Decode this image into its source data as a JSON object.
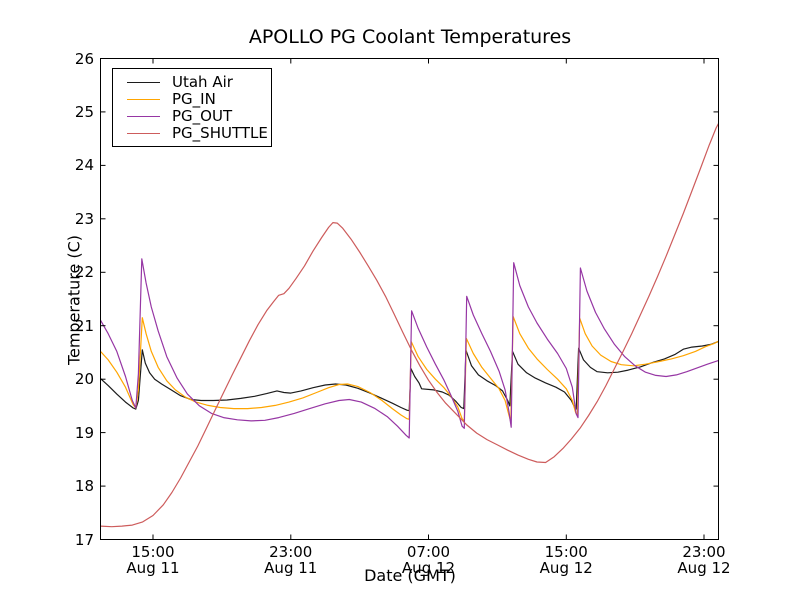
{
  "chart_data": {
    "type": "line",
    "title": "APOLLO PG Coolant Temperatures",
    "xlabel": "Date (GMT)",
    "ylabel": "Temperature (C)",
    "grid": false,
    "legend_position": "upper-left",
    "x_axis": {
      "unit": "hours since Aug 11 15:00 GMT",
      "range": [
        -3.08,
        32.85
      ],
      "ticks": [
        {
          "t": 0,
          "time": "15:00",
          "date": "Aug 11"
        },
        {
          "t": 8,
          "time": "23:00",
          "date": "Aug 11"
        },
        {
          "t": 16,
          "time": "07:00",
          "date": "Aug 12"
        },
        {
          "t": 24,
          "time": "15:00",
          "date": "Aug 12"
        },
        {
          "t": 32,
          "time": "23:00",
          "date": "Aug 12"
        }
      ]
    },
    "y_axis": {
      "range": [
        17,
        26
      ],
      "ticks": [
        17,
        18,
        19,
        20,
        21,
        22,
        23,
        24,
        25,
        26
      ]
    },
    "series": [
      {
        "name": "Utah Air",
        "color": "#1c1c1c",
        "points": [
          [
            -3.08,
            20.02
          ],
          [
            -2.6,
            19.88
          ],
          [
            -2.1,
            19.72
          ],
          [
            -1.6,
            19.57
          ],
          [
            -1.15,
            19.46
          ],
          [
            -1.0,
            19.44
          ],
          [
            -0.85,
            19.6
          ],
          [
            -0.62,
            20.55
          ],
          [
            -0.45,
            20.3
          ],
          [
            -0.2,
            20.12
          ],
          [
            0.1,
            20.0
          ],
          [
            0.5,
            19.91
          ],
          [
            1.0,
            19.81
          ],
          [
            1.6,
            19.69
          ],
          [
            2.2,
            19.62
          ],
          [
            2.8,
            19.6
          ],
          [
            3.5,
            19.6
          ],
          [
            4.3,
            19.61
          ],
          [
            5.1,
            19.64
          ],
          [
            5.9,
            19.68
          ],
          [
            6.6,
            19.73
          ],
          [
            7.2,
            19.78
          ],
          [
            7.6,
            19.75
          ],
          [
            8.0,
            19.74
          ],
          [
            8.6,
            19.78
          ],
          [
            9.3,
            19.84
          ],
          [
            10.0,
            19.89
          ],
          [
            10.6,
            19.91
          ],
          [
            11.2,
            19.89
          ],
          [
            11.9,
            19.83
          ],
          [
            12.6,
            19.74
          ],
          [
            13.3,
            19.64
          ],
          [
            13.9,
            19.55
          ],
          [
            14.4,
            19.47
          ],
          [
            14.75,
            19.42
          ],
          [
            14.88,
            19.41
          ],
          [
            14.98,
            20.2
          ],
          [
            15.2,
            20.05
          ],
          [
            15.45,
            19.93
          ],
          [
            15.6,
            19.82
          ],
          [
            16.3,
            19.8
          ],
          [
            16.8,
            19.76
          ],
          [
            17.2,
            19.7
          ],
          [
            17.6,
            19.58
          ],
          [
            17.9,
            19.47
          ],
          [
            18.05,
            19.45
          ],
          [
            18.18,
            20.54
          ],
          [
            18.5,
            20.25
          ],
          [
            18.9,
            20.08
          ],
          [
            19.4,
            19.97
          ],
          [
            19.9,
            19.88
          ],
          [
            20.3,
            19.78
          ],
          [
            20.6,
            19.6
          ],
          [
            20.72,
            19.5
          ],
          [
            20.88,
            20.52
          ],
          [
            21.2,
            20.28
          ],
          [
            21.7,
            20.12
          ],
          [
            22.2,
            20.02
          ],
          [
            22.8,
            19.93
          ],
          [
            23.4,
            19.85
          ],
          [
            23.9,
            19.76
          ],
          [
            24.3,
            19.6
          ],
          [
            24.5,
            19.46
          ],
          [
            24.58,
            19.44
          ],
          [
            24.72,
            20.58
          ],
          [
            25.0,
            20.36
          ],
          [
            25.4,
            20.22
          ],
          [
            25.8,
            20.14
          ],
          [
            26.4,
            20.12
          ],
          [
            27.0,
            20.13
          ],
          [
            27.6,
            20.17
          ],
          [
            28.3,
            20.23
          ],
          [
            29.0,
            20.31
          ],
          [
            29.7,
            20.38
          ],
          [
            30.3,
            20.46
          ],
          [
            30.8,
            20.56
          ],
          [
            31.3,
            20.6
          ],
          [
            31.9,
            20.62
          ],
          [
            32.4,
            20.65
          ],
          [
            32.95,
            20.72
          ]
        ]
      },
      {
        "name": "PG_IN",
        "color": "#ffa500",
        "points": [
          [
            -3.08,
            20.53
          ],
          [
            -2.6,
            20.36
          ],
          [
            -2.1,
            20.13
          ],
          [
            -1.6,
            19.85
          ],
          [
            -1.15,
            19.52
          ],
          [
            -1.0,
            19.46
          ],
          [
            -0.85,
            19.8
          ],
          [
            -0.62,
            21.15
          ],
          [
            -0.4,
            20.85
          ],
          [
            -0.1,
            20.52
          ],
          [
            0.3,
            20.22
          ],
          [
            0.8,
            19.97
          ],
          [
            1.3,
            19.8
          ],
          [
            1.9,
            19.66
          ],
          [
            2.5,
            19.57
          ],
          [
            3.2,
            19.51
          ],
          [
            3.9,
            19.47
          ],
          [
            4.7,
            19.45
          ],
          [
            5.5,
            19.45
          ],
          [
            6.3,
            19.47
          ],
          [
            7.1,
            19.51
          ],
          [
            7.9,
            19.57
          ],
          [
            8.7,
            19.65
          ],
          [
            9.5,
            19.75
          ],
          [
            10.2,
            19.84
          ],
          [
            10.8,
            19.9
          ],
          [
            11.3,
            19.91
          ],
          [
            11.9,
            19.86
          ],
          [
            12.6,
            19.75
          ],
          [
            13.3,
            19.6
          ],
          [
            13.9,
            19.45
          ],
          [
            14.4,
            19.33
          ],
          [
            14.75,
            19.26
          ],
          [
            14.88,
            19.25
          ],
          [
            15.0,
            20.7
          ],
          [
            15.4,
            20.42
          ],
          [
            15.9,
            20.18
          ],
          [
            16.4,
            20.0
          ],
          [
            16.9,
            19.84
          ],
          [
            17.3,
            19.68
          ],
          [
            17.7,
            19.48
          ],
          [
            17.95,
            19.26
          ],
          [
            18.08,
            19.22
          ],
          [
            18.2,
            20.76
          ],
          [
            18.6,
            20.48
          ],
          [
            19.1,
            20.22
          ],
          [
            19.6,
            20.02
          ],
          [
            20.1,
            19.82
          ],
          [
            20.45,
            19.6
          ],
          [
            20.65,
            19.35
          ],
          [
            20.78,
            19.2
          ],
          [
            20.92,
            21.17
          ],
          [
            21.3,
            20.85
          ],
          [
            21.8,
            20.58
          ],
          [
            22.3,
            20.38
          ],
          [
            22.9,
            20.18
          ],
          [
            23.5,
            20.0
          ],
          [
            24.0,
            19.82
          ],
          [
            24.35,
            19.6
          ],
          [
            24.55,
            19.37
          ],
          [
            24.65,
            19.33
          ],
          [
            24.78,
            21.14
          ],
          [
            25.1,
            20.85
          ],
          [
            25.5,
            20.62
          ],
          [
            26.0,
            20.45
          ],
          [
            26.6,
            20.33
          ],
          [
            27.2,
            20.27
          ],
          [
            27.9,
            20.25
          ],
          [
            28.6,
            20.28
          ],
          [
            29.4,
            20.33
          ],
          [
            30.1,
            20.38
          ],
          [
            30.8,
            20.44
          ],
          [
            31.5,
            20.52
          ],
          [
            32.1,
            20.61
          ],
          [
            32.6,
            20.67
          ],
          [
            32.95,
            20.73
          ]
        ]
      },
      {
        "name": "PG_OUT",
        "color": "#9636a4",
        "points": [
          [
            -3.08,
            21.12
          ],
          [
            -2.6,
            20.85
          ],
          [
            -2.1,
            20.52
          ],
          [
            -1.6,
            20.05
          ],
          [
            -1.2,
            19.6
          ],
          [
            -1.0,
            19.46
          ],
          [
            -0.85,
            20.1
          ],
          [
            -0.65,
            22.25
          ],
          [
            -0.4,
            21.8
          ],
          [
            -0.1,
            21.35
          ],
          [
            0.3,
            20.9
          ],
          [
            0.8,
            20.42
          ],
          [
            1.4,
            20.02
          ],
          [
            2.0,
            19.72
          ],
          [
            2.7,
            19.5
          ],
          [
            3.4,
            19.36
          ],
          [
            4.1,
            19.28
          ],
          [
            4.9,
            19.24
          ],
          [
            5.7,
            19.22
          ],
          [
            6.5,
            19.23
          ],
          [
            7.3,
            19.28
          ],
          [
            8.2,
            19.36
          ],
          [
            9.1,
            19.45
          ],
          [
            10.0,
            19.54
          ],
          [
            10.8,
            19.6
          ],
          [
            11.4,
            19.62
          ],
          [
            12.1,
            19.57
          ],
          [
            12.9,
            19.45
          ],
          [
            13.6,
            19.3
          ],
          [
            14.2,
            19.12
          ],
          [
            14.7,
            18.95
          ],
          [
            14.88,
            18.9
          ],
          [
            15.02,
            21.28
          ],
          [
            15.4,
            20.95
          ],
          [
            15.9,
            20.6
          ],
          [
            16.4,
            20.28
          ],
          [
            16.9,
            19.98
          ],
          [
            17.3,
            19.7
          ],
          [
            17.7,
            19.4
          ],
          [
            17.95,
            19.12
          ],
          [
            18.08,
            19.08
          ],
          [
            18.22,
            21.55
          ],
          [
            18.6,
            21.2
          ],
          [
            19.1,
            20.85
          ],
          [
            19.6,
            20.52
          ],
          [
            20.1,
            20.15
          ],
          [
            20.45,
            19.8
          ],
          [
            20.67,
            19.4
          ],
          [
            20.8,
            19.1
          ],
          [
            20.95,
            22.18
          ],
          [
            21.3,
            21.75
          ],
          [
            21.8,
            21.35
          ],
          [
            22.3,
            21.05
          ],
          [
            22.9,
            20.75
          ],
          [
            23.5,
            20.48
          ],
          [
            24.0,
            20.2
          ],
          [
            24.35,
            19.85
          ],
          [
            24.58,
            19.35
          ],
          [
            24.68,
            19.28
          ],
          [
            24.82,
            22.08
          ],
          [
            25.2,
            21.65
          ],
          [
            25.7,
            21.25
          ],
          [
            26.2,
            20.95
          ],
          [
            26.8,
            20.65
          ],
          [
            27.4,
            20.42
          ],
          [
            28.0,
            20.25
          ],
          [
            28.6,
            20.13
          ],
          [
            29.2,
            20.07
          ],
          [
            29.8,
            20.05
          ],
          [
            30.4,
            20.08
          ],
          [
            31.0,
            20.14
          ],
          [
            31.6,
            20.21
          ],
          [
            32.2,
            20.28
          ],
          [
            32.95,
            20.36
          ]
        ]
      },
      {
        "name": "PG_SHUTTLE",
        "color": "#cd5c5c",
        "points": [
          [
            -3.08,
            17.25
          ],
          [
            -2.4,
            17.24
          ],
          [
            -1.8,
            17.25
          ],
          [
            -1.2,
            17.27
          ],
          [
            -0.6,
            17.33
          ],
          [
            0.0,
            17.45
          ],
          [
            0.6,
            17.65
          ],
          [
            1.1,
            17.88
          ],
          [
            1.6,
            18.15
          ],
          [
            2.1,
            18.45
          ],
          [
            2.6,
            18.75
          ],
          [
            3.1,
            19.08
          ],
          [
            3.6,
            19.42
          ],
          [
            4.1,
            19.75
          ],
          [
            4.6,
            20.08
          ],
          [
            5.1,
            20.4
          ],
          [
            5.6,
            20.72
          ],
          [
            6.1,
            21.02
          ],
          [
            6.6,
            21.28
          ],
          [
            7.0,
            21.45
          ],
          [
            7.3,
            21.57
          ],
          [
            7.6,
            21.6
          ],
          [
            7.9,
            21.7
          ],
          [
            8.3,
            21.88
          ],
          [
            8.8,
            22.12
          ],
          [
            9.3,
            22.4
          ],
          [
            9.8,
            22.65
          ],
          [
            10.2,
            22.84
          ],
          [
            10.45,
            22.93
          ],
          [
            10.7,
            22.92
          ],
          [
            11.0,
            22.83
          ],
          [
            11.5,
            22.62
          ],
          [
            12.0,
            22.38
          ],
          [
            12.5,
            22.12
          ],
          [
            13.0,
            21.85
          ],
          [
            13.5,
            21.55
          ],
          [
            14.0,
            21.22
          ],
          [
            14.5,
            20.88
          ],
          [
            15.0,
            20.55
          ],
          [
            15.5,
            20.25
          ],
          [
            16.0,
            19.98
          ],
          [
            16.5,
            19.75
          ],
          [
            17.0,
            19.55
          ],
          [
            17.6,
            19.35
          ],
          [
            18.2,
            19.15
          ],
          [
            18.8,
            18.99
          ],
          [
            19.4,
            18.87
          ],
          [
            20.0,
            18.77
          ],
          [
            20.6,
            18.67
          ],
          [
            21.2,
            18.58
          ],
          [
            21.8,
            18.5
          ],
          [
            22.3,
            18.45
          ],
          [
            22.8,
            18.44
          ],
          [
            23.3,
            18.55
          ],
          [
            23.8,
            18.7
          ],
          [
            24.3,
            18.88
          ],
          [
            24.8,
            19.08
          ],
          [
            25.3,
            19.32
          ],
          [
            25.8,
            19.58
          ],
          [
            26.3,
            19.88
          ],
          [
            26.8,
            20.2
          ],
          [
            27.3,
            20.52
          ],
          [
            27.8,
            20.85
          ],
          [
            28.3,
            21.2
          ],
          [
            28.8,
            21.55
          ],
          [
            29.3,
            21.92
          ],
          [
            29.8,
            22.3
          ],
          [
            30.3,
            22.7
          ],
          [
            30.8,
            23.1
          ],
          [
            31.3,
            23.52
          ],
          [
            31.8,
            23.95
          ],
          [
            32.3,
            24.38
          ],
          [
            32.7,
            24.7
          ],
          [
            32.95,
            24.85
          ]
        ]
      }
    ]
  }
}
